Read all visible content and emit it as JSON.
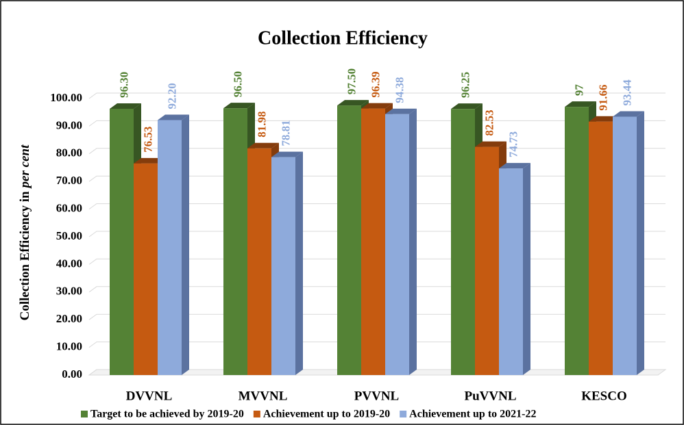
{
  "chart_data": {
    "type": "bar3d",
    "title": "Collection Efficiency",
    "y_label": [
      "Collection Efficiency in",
      "per cent"
    ],
    "categories": [
      "DVVNL",
      "MVVNL",
      "PVVNL",
      "PuVVNL",
      "KESCO"
    ],
    "series": [
      {
        "name": "Target to be achieved by 2019-20",
        "color": "#548235",
        "side": "#375623",
        "values": [
          96.3,
          96.5,
          97.5,
          96.25,
          97
        ],
        "value_labels": [
          "96.30",
          "96.50",
          "97.50",
          "96.25",
          "97"
        ]
      },
      {
        "name": "Achievement up to 2019-20",
        "color": "#c55a11",
        "side": "#843c0c",
        "values": [
          76.53,
          81.98,
          96.39,
          82.53,
          91.66
        ],
        "value_labels": [
          "76.53",
          "81.98",
          "96.39",
          "82.53",
          "91.66"
        ]
      },
      {
        "name": "Achievement up to 2021-22",
        "color": "#8eaadb",
        "side": "#5b72a0",
        "values": [
          92.2,
          78.81,
          94.38,
          74.73,
          93.44
        ],
        "value_labels": [
          "92.20",
          "78.81",
          "94.38",
          "74.73",
          "93.44"
        ]
      }
    ],
    "ylim": [
      0,
      100
    ],
    "yticks": [
      {
        "value": 0,
        "label": "0.00"
      },
      {
        "value": 10,
        "label": "10.00"
      },
      {
        "value": 20,
        "label": "20.00"
      },
      {
        "value": 30,
        "label": "30.00"
      },
      {
        "value": 40,
        "label": "40.00"
      },
      {
        "value": 50,
        "label": "50.00"
      },
      {
        "value": 60,
        "label": "60.00"
      },
      {
        "value": 70,
        "label": "70.00"
      },
      {
        "value": 80,
        "label": "80.00"
      },
      {
        "value": 90,
        "label": "90.00"
      },
      {
        "value": 100,
        "label": "100.00"
      }
    ],
    "grid": true,
    "legend": "bottom"
  }
}
